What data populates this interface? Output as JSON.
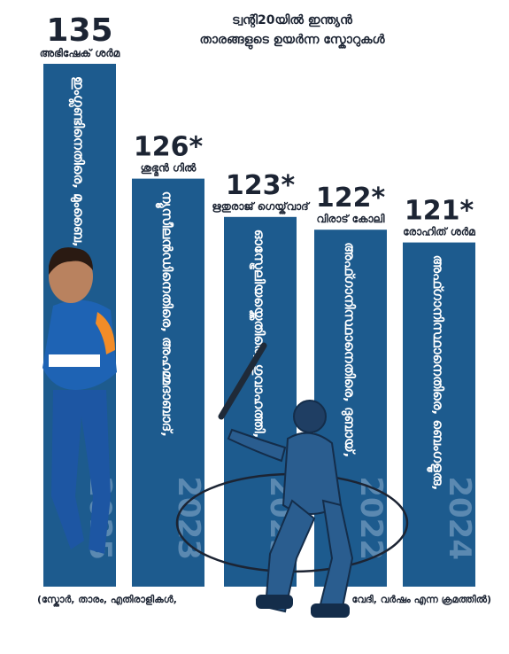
{
  "chart_data": {
    "type": "bar",
    "title_lines": [
      "ട്വന്റി20യിൽ ഇന്ത്യൻ",
      "താരങ്ങളുടെ ഉയർന്ന സ്കോറുകൾ"
    ],
    "categories": [
      "അഭിഷേക് ശർമ",
      "ശുഭ്മൻ ഗിൽ",
      "ഋതുരാജ് ഗെയ്ക്‌വാദ്",
      "വിരാട് കോലി",
      "രോഹിത് ശർമ"
    ],
    "value_labels": [
      "135",
      "126*",
      "123*",
      "122*",
      "121*"
    ],
    "values": [
      135,
      126,
      123,
      122,
      121
    ],
    "opponents": [
      "ഇംഗ്ലണ്ടിനെതിരെ, മുംബൈ,",
      "ന്യൂസീലൻഡിനെതിരെ, അഹമ്മദാബാദ്,",
      "ഓസ്ട്രേലിയയ്ക്കെതിരെ, ഗുവാഹത്തി,",
      "അഫ്ഗാനിസ്ഥാനെതിരെ, ദുബായ്,",
      "അഫ്ഗാനിസ്ഥാനെതിരെ, ബെംഗളൂരു,"
    ],
    "years": [
      "2025",
      "2023",
      "2023",
      "2022",
      "2024"
    ],
    "footer_left": "(സ്കോർ, താരം, എതിരാളികൾ,",
    "footer_right": "വേദി, വർഷം എന്ന ക്രമത്തിൽ)",
    "colors": {
      "bar": "#1d5b8e",
      "text": "#1c2433",
      "year": "#8fb0cf"
    }
  }
}
